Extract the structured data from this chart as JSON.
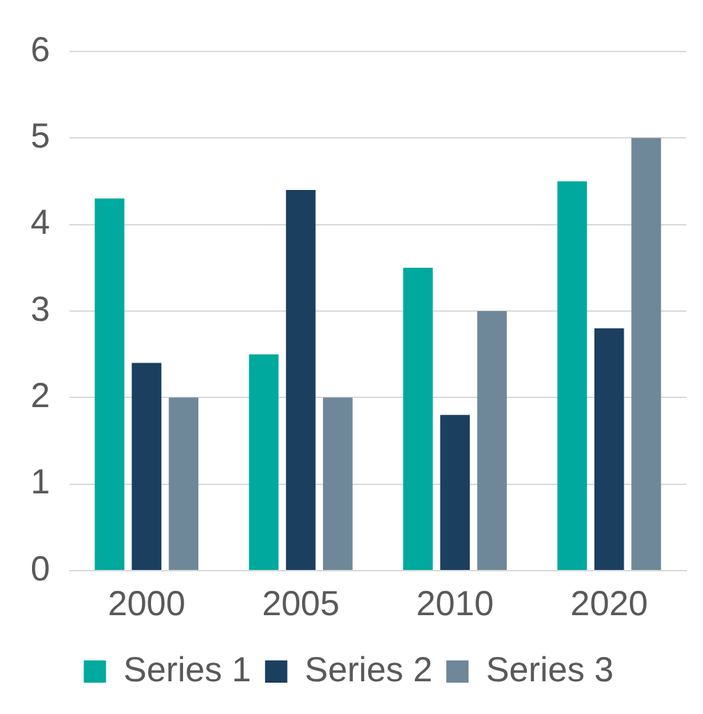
{
  "chart_data": {
    "type": "bar",
    "categories": [
      "2000",
      "2005",
      "2010",
      "2020"
    ],
    "series": [
      {
        "name": "Series 1",
        "color": "#00a99d",
        "values": [
          4.3,
          2.5,
          3.5,
          4.5
        ]
      },
      {
        "name": "Series 2",
        "color": "#1b3f5f",
        "values": [
          2.4,
          4.4,
          1.8,
          2.8
        ]
      },
      {
        "name": "Series 3",
        "color": "#6f8899",
        "values": [
          2,
          2,
          3,
          5
        ]
      }
    ],
    "ylim": [
      0,
      6
    ],
    "yticks": [
      0,
      1,
      2,
      3,
      4,
      5,
      6
    ],
    "grid": "y",
    "legend": "bottom"
  }
}
